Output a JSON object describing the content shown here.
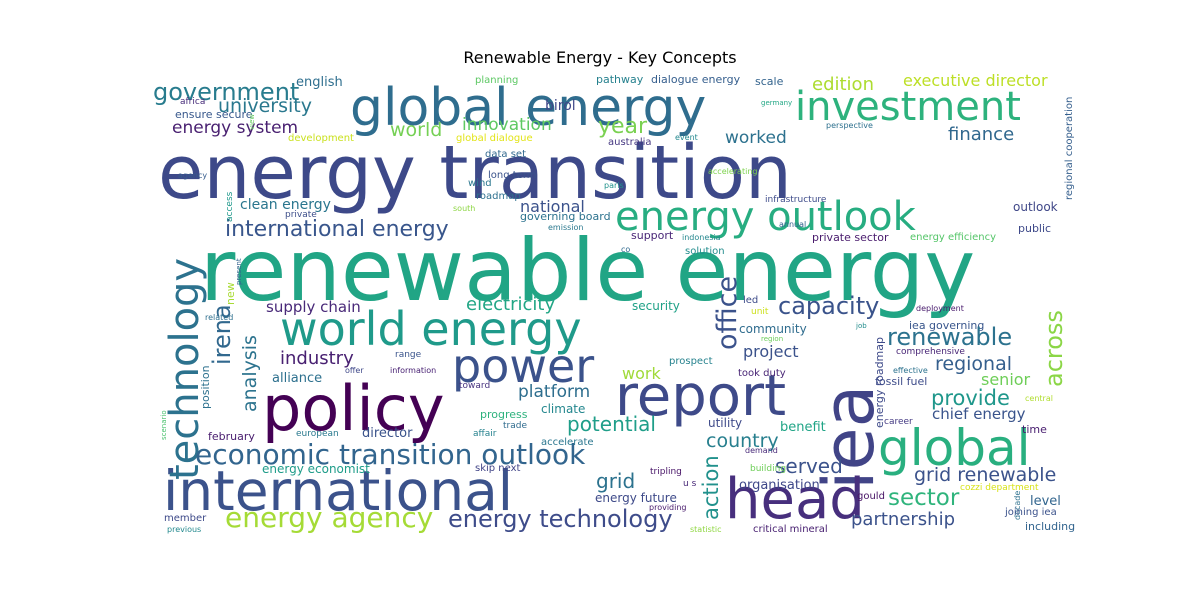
{
  "chart_data": {
    "type": "wordcloud",
    "title": "Renewable Energy - Key Concepts",
    "words": [
      {
        "text": "energy transition",
        "color": "#3d4989"
      },
      {
        "text": "renewable energy",
        "color": "#21a585"
      },
      {
        "text": "global energy",
        "color": "#2f6d8e"
      },
      {
        "text": "investment",
        "color": "#2db27d"
      },
      {
        "text": "energy outlook",
        "color": "#27ad81"
      },
      {
        "text": "world energy",
        "color": "#1f9a8a"
      },
      {
        "text": "policy",
        "color": "#440154"
      },
      {
        "text": "power",
        "color": "#3b528b"
      },
      {
        "text": "report",
        "color": "#3e4a89"
      },
      {
        "text": "iea",
        "color": "#414487"
      },
      {
        "text": "global",
        "color": "#29af7f"
      },
      {
        "text": "international",
        "color": "#3b528b"
      },
      {
        "text": "head",
        "color": "#472f7d"
      },
      {
        "text": "technology",
        "color": "#2c728e"
      },
      {
        "text": "economic transition outlook",
        "color": "#32658e"
      },
      {
        "text": "energy agency",
        "color": "#a5db36"
      },
      {
        "text": "energy technology",
        "color": "#3e4c8a"
      },
      {
        "text": "international energy",
        "color": "#39568c"
      },
      {
        "text": "government",
        "color": "#287c8e"
      },
      {
        "text": "university",
        "color": "#2a788e"
      },
      {
        "text": "energy system",
        "color": "#481f70"
      },
      {
        "text": "world",
        "color": "#75d054"
      },
      {
        "text": "innovation",
        "color": "#5ec962"
      },
      {
        "text": "year",
        "color": "#7ad151"
      },
      {
        "text": "edition",
        "color": "#addc30"
      },
      {
        "text": "executive director",
        "color": "#bddf26"
      },
      {
        "text": "worked",
        "color": "#2c718e"
      },
      {
        "text": "finance",
        "color": "#31688e"
      },
      {
        "text": "english",
        "color": "#2e6e8e"
      },
      {
        "text": "birol",
        "color": "#3f4788"
      },
      {
        "text": "pathway",
        "color": "#26818e"
      },
      {
        "text": "dialogue energy",
        "color": "#355e8d"
      },
      {
        "text": "scale",
        "color": "#33638d"
      },
      {
        "text": "planning",
        "color": "#5cc863"
      },
      {
        "text": "germany",
        "color": "#22a785"
      },
      {
        "text": "regional cooperation",
        "color": "#355f8d"
      },
      {
        "text": "africa",
        "color": "#472c7a"
      },
      {
        "text": "ensure secure",
        "color": "#38588c"
      },
      {
        "text": "view",
        "color": "#65cb5e"
      },
      {
        "text": "development",
        "color": "#cae11f"
      },
      {
        "text": "global dialogue",
        "color": "#e2e418"
      },
      {
        "text": "australia",
        "color": "#453781"
      },
      {
        "text": "event",
        "color": "#23888e"
      },
      {
        "text": "perspective",
        "color": "#2d708e"
      },
      {
        "text": "agency",
        "color": "#365c8d"
      },
      {
        "text": "access",
        "color": "#1f988b"
      },
      {
        "text": "data set",
        "color": "#31688e"
      },
      {
        "text": "wind",
        "color": "#2a768e"
      },
      {
        "text": "long term",
        "color": "#3a538b"
      },
      {
        "text": "roadmap",
        "color": "#2d708e"
      },
      {
        "text": "paris",
        "color": "#20928c"
      },
      {
        "text": "accelerating",
        "color": "#7fd34e"
      },
      {
        "text": "infrastructure",
        "color": "#3e4c8a"
      },
      {
        "text": "clean energy",
        "color": "#2a768e"
      },
      {
        "text": "private",
        "color": "#3d4e8a"
      },
      {
        "text": "south",
        "color": "#8ed645"
      },
      {
        "text": "national",
        "color": "#3b528b"
      },
      {
        "text": "governing board",
        "color": "#2c728e"
      },
      {
        "text": "emission",
        "color": "#2a788e"
      },
      {
        "text": "indonesia",
        "color": "#24878e"
      },
      {
        "text": "annual",
        "color": "#32648e"
      },
      {
        "text": "outlook",
        "color": "#3f4788"
      },
      {
        "text": "public",
        "color": "#3e4989"
      },
      {
        "text": "support",
        "color": "#482576"
      },
      {
        "text": "co",
        "color": "#30698e"
      },
      {
        "text": "solution",
        "color": "#228c8d"
      },
      {
        "text": "private sector",
        "color": "#481a6c"
      },
      {
        "text": "energy efficiency",
        "color": "#54c568"
      },
      {
        "text": "present",
        "color": "#33638d"
      },
      {
        "text": "new",
        "color": "#a8db34"
      },
      {
        "text": "supply chain",
        "color": "#482878"
      },
      {
        "text": "irena",
        "color": "#31688e"
      },
      {
        "text": "analysis",
        "color": "#2c738e"
      },
      {
        "text": "electricity",
        "color": "#21a685"
      },
      {
        "text": "security",
        "color": "#1fa187"
      },
      {
        "text": "office",
        "color": "#3b528b"
      },
      {
        "text": "capacity",
        "color": "#3a538b"
      },
      {
        "text": "led",
        "color": "#3e4c8a"
      },
      {
        "text": "unit",
        "color": "#cde11d"
      },
      {
        "text": "deployment",
        "color": "#481b6d"
      },
      {
        "text": "iea governing",
        "color": "#39568c"
      },
      {
        "text": "renewable",
        "color": "#2c728e"
      },
      {
        "text": "across",
        "color": "#8bd646"
      },
      {
        "text": "community",
        "color": "#2f6c8e"
      },
      {
        "text": "region",
        "color": "#6ccd5a"
      },
      {
        "text": "job",
        "color": "#228d8d"
      },
      {
        "text": "energy roadmap",
        "color": "#3e4a89"
      },
      {
        "text": "comprehensive",
        "color": "#482576"
      },
      {
        "text": "related",
        "color": "#2e6f8e"
      },
      {
        "text": "position",
        "color": "#2d718e"
      },
      {
        "text": "industry",
        "color": "#482071"
      },
      {
        "text": "range",
        "color": "#3a548c"
      },
      {
        "text": "offer",
        "color": "#3f4889"
      },
      {
        "text": "information",
        "color": "#482173"
      },
      {
        "text": "project",
        "color": "#3b528b"
      },
      {
        "text": "regional",
        "color": "#355f8d"
      },
      {
        "text": "alliance",
        "color": "#2d708e"
      },
      {
        "text": "work",
        "color": "#a0da39"
      },
      {
        "text": "prospect",
        "color": "#26828e"
      },
      {
        "text": "effective",
        "color": "#2c728e"
      },
      {
        "text": "senior",
        "color": "#6ece58"
      },
      {
        "text": "toward",
        "color": "#46327e"
      },
      {
        "text": "took duty",
        "color": "#482575"
      },
      {
        "text": "fossil fuel",
        "color": "#3e4c8a"
      },
      {
        "text": "platform",
        "color": "#2e6e8e"
      },
      {
        "text": "provide",
        "color": "#1f978b"
      },
      {
        "text": "central",
        "color": "#b0dd2f"
      },
      {
        "text": "scenario",
        "color": "#4ac16d"
      },
      {
        "text": "progress",
        "color": "#2db27d"
      },
      {
        "text": "climate",
        "color": "#24878e"
      },
      {
        "text": "chief energy",
        "color": "#3a548c"
      },
      {
        "text": "potential",
        "color": "#1f9e89"
      },
      {
        "text": "utility",
        "color": "#3e4a89"
      },
      {
        "text": "career",
        "color": "#443a83"
      },
      {
        "text": "trade",
        "color": "#2f6b8e"
      },
      {
        "text": "benefit",
        "color": "#20a486"
      },
      {
        "text": "time",
        "color": "#481d6f"
      },
      {
        "text": "february",
        "color": "#481c6e"
      },
      {
        "text": "european",
        "color": "#29798e"
      },
      {
        "text": "affair",
        "color": "#26828e"
      },
      {
        "text": "director",
        "color": "#3a538b"
      },
      {
        "text": "country",
        "color": "#277f8e"
      },
      {
        "text": "accelerate",
        "color": "#2a768e"
      },
      {
        "text": "demand",
        "color": "#482979"
      },
      {
        "text": "energy economist",
        "color": "#1e9c89"
      },
      {
        "text": "skip next",
        "color": "#414487"
      },
      {
        "text": "served",
        "color": "#3b528b"
      },
      {
        "text": "action",
        "color": "#21918c"
      },
      {
        "text": "grid renewable",
        "color": "#3b528b"
      },
      {
        "text": "grid",
        "color": "#2c728e"
      },
      {
        "text": "tripling",
        "color": "#481467"
      },
      {
        "text": "building",
        "color": "#6ece58"
      },
      {
        "text": "u s",
        "color": "#482878"
      },
      {
        "text": "organisation",
        "color": "#3f4889"
      },
      {
        "text": "cozzi department",
        "color": "#d8e219"
      },
      {
        "text": "sector",
        "color": "#2fb47c"
      },
      {
        "text": "level",
        "color": "#32658e"
      },
      {
        "text": "gould",
        "color": "#471365"
      },
      {
        "text": "decade",
        "color": "#2d718e"
      },
      {
        "text": "energy future",
        "color": "#3e4a89"
      },
      {
        "text": "providing",
        "color": "#481a6c"
      },
      {
        "text": "partnership",
        "color": "#3b528b"
      },
      {
        "text": "member",
        "color": "#3e4a89"
      },
      {
        "text": "previous",
        "color": "#23898e"
      },
      {
        "text": "statistic",
        "color": "#90d743"
      },
      {
        "text": "critical mineral",
        "color": "#482071"
      },
      {
        "text": "joining iea",
        "color": "#3b528b"
      },
      {
        "text": "including",
        "color": "#32648e"
      }
    ]
  }
}
